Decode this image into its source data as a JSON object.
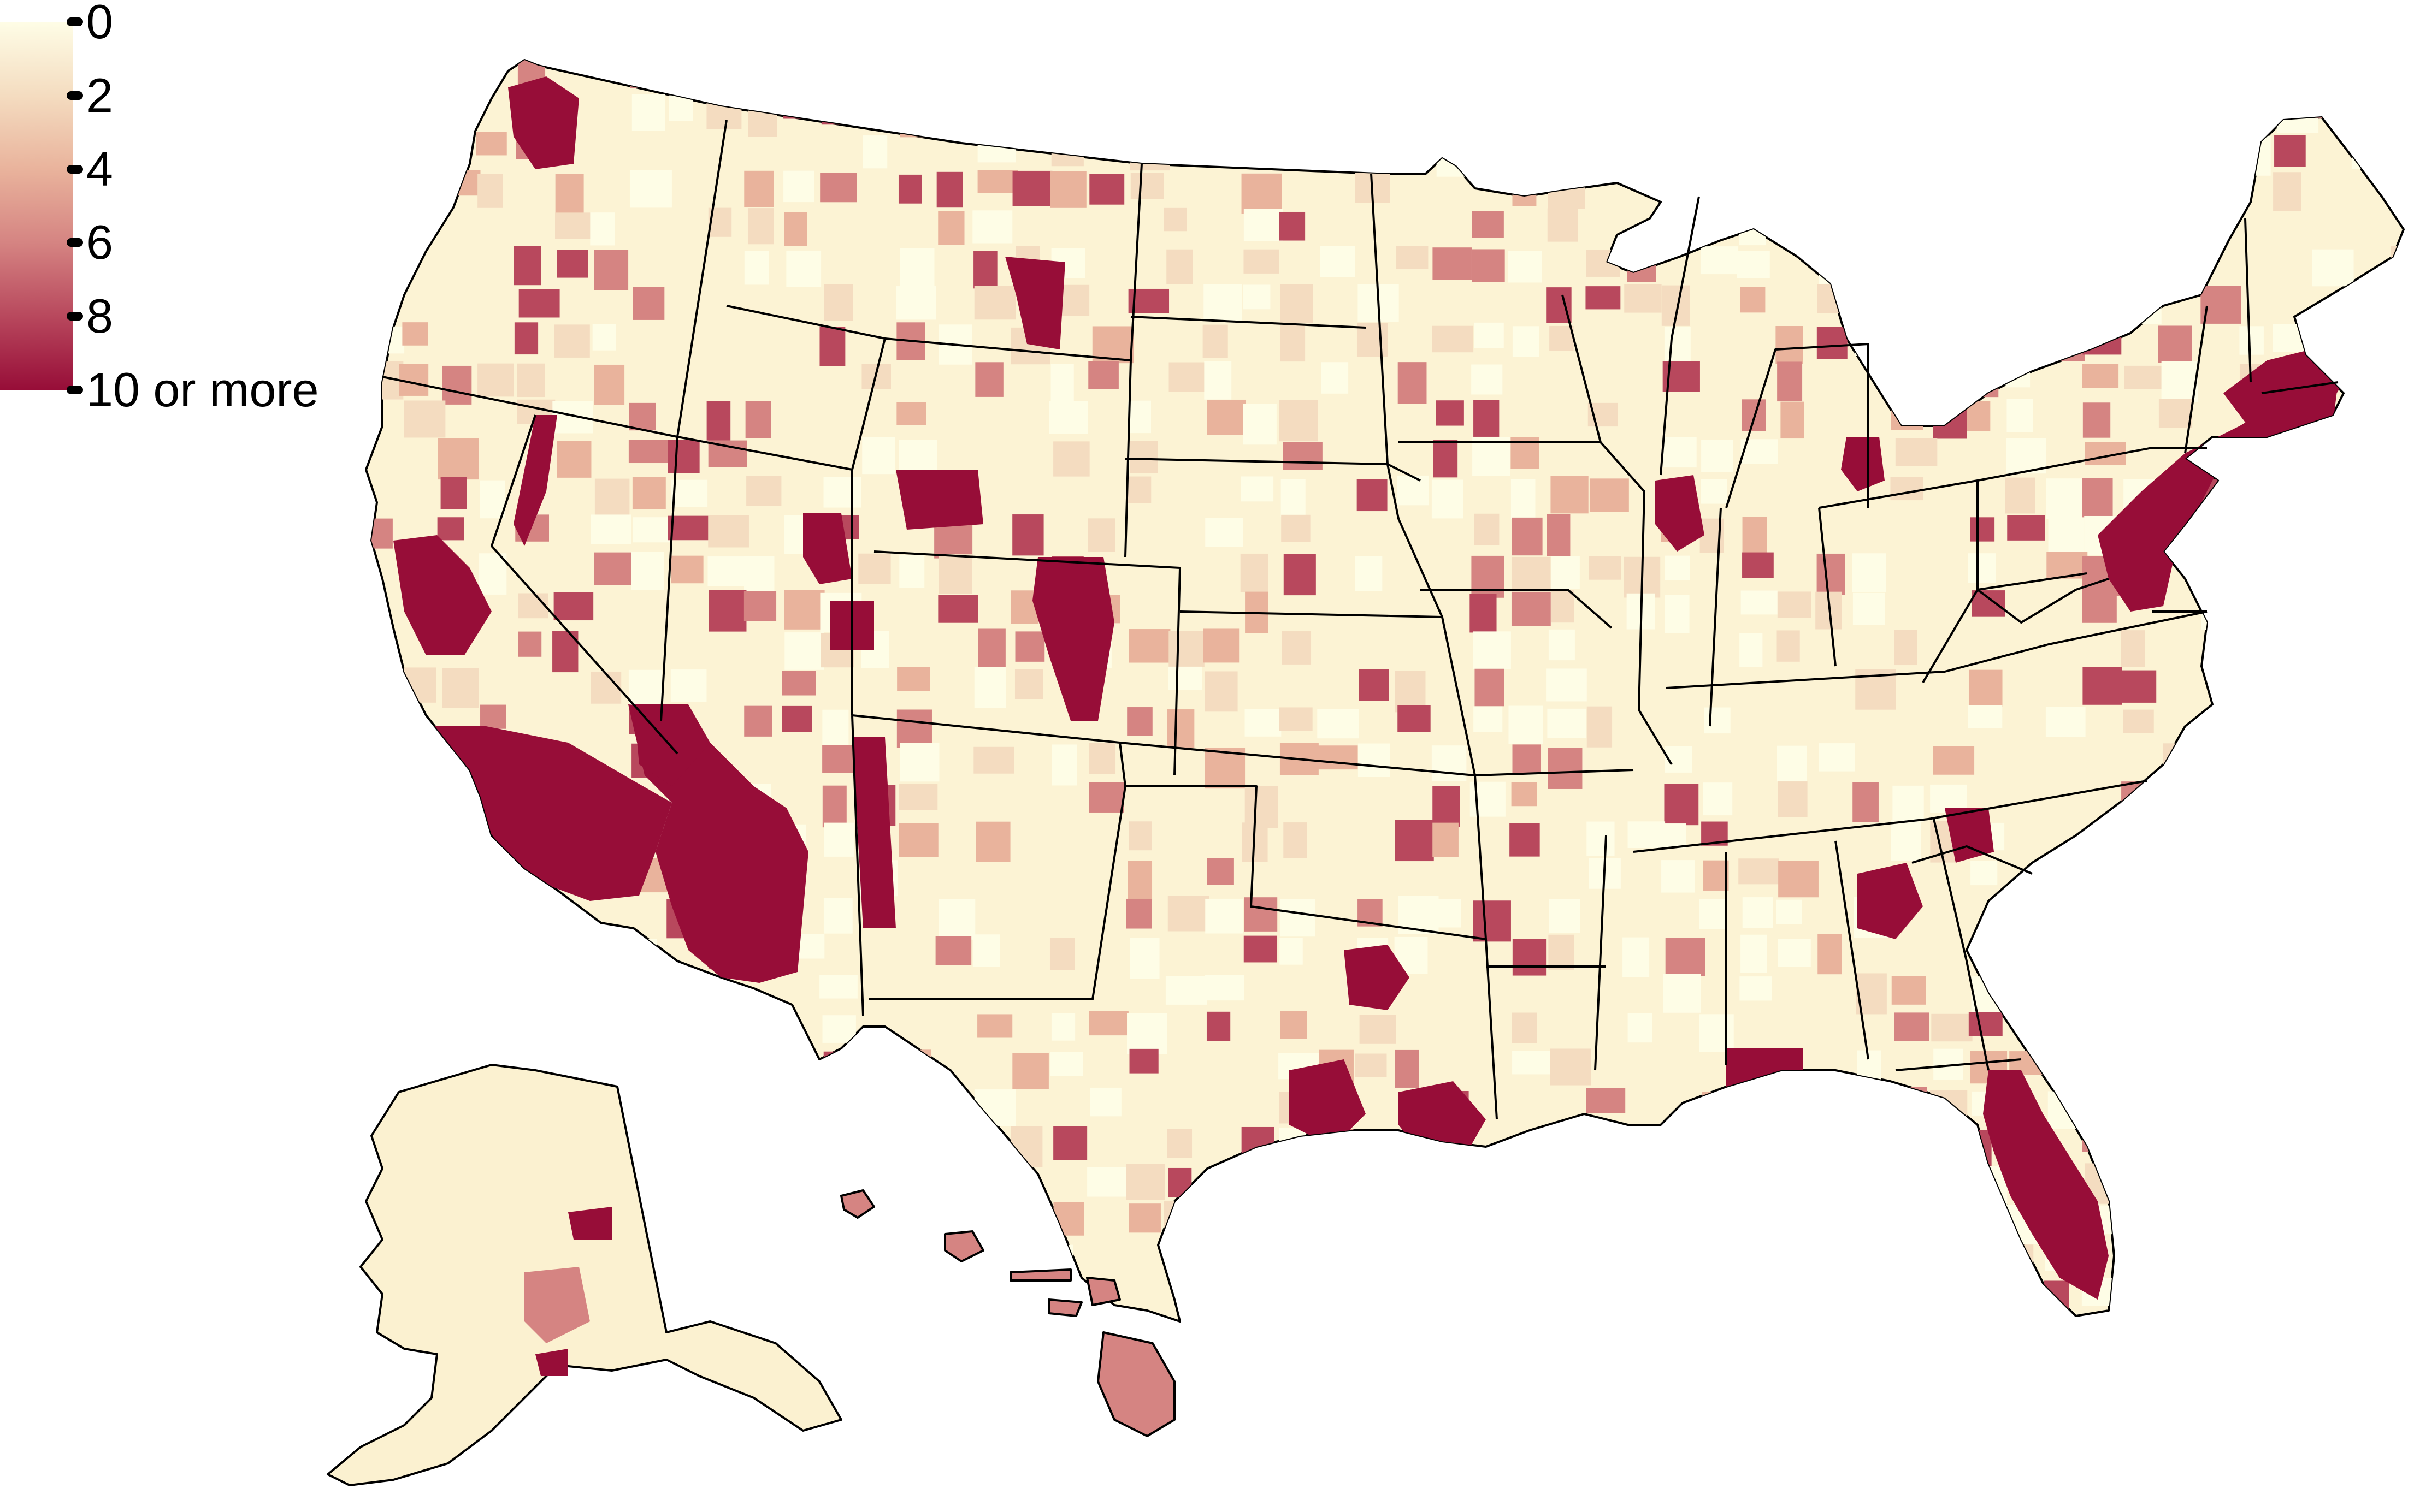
{
  "legend": {
    "labels": [
      "0",
      "2",
      "4",
      "6",
      "8",
      "10 or more"
    ],
    "values": [
      0,
      2,
      4,
      6,
      8,
      10
    ],
    "colors": {
      "low": "#fefde6",
      "mid_low": "#f4dcc0",
      "mid": "#e9b39c",
      "mid_high": "#d58482",
      "high": "#b8485d",
      "max": "#970d38"
    }
  },
  "regions": [
    {
      "name": "contiguous-us",
      "fill": "#fcf3d4"
    },
    {
      "name": "alaska",
      "fill": "#fbf1d0"
    },
    {
      "name": "hawaii",
      "fill": "#d58482"
    }
  ]
}
